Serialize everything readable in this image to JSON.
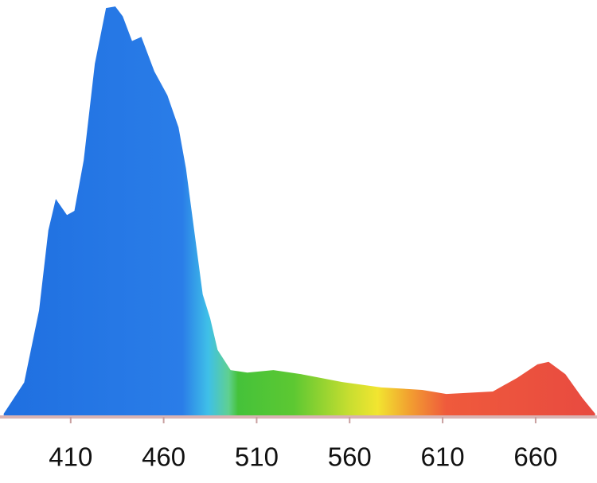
{
  "chart_data": {
    "type": "area",
    "x": [
      374,
      385,
      393,
      398,
      402,
      408,
      412,
      417,
      423,
      429,
      434,
      438,
      443,
      448,
      455,
      462,
      468,
      472,
      477,
      481,
      485,
      489,
      496,
      505,
      519,
      534,
      556,
      577,
      599,
      612,
      637,
      650,
      661,
      667,
      676,
      685,
      692
    ],
    "values": [
      0.4,
      8,
      25.5,
      45,
      52.6,
      48.7,
      49.7,
      62,
      85.5,
      99,
      99.4,
      97,
      91,
      92,
      83.6,
      77.8,
      70,
      60,
      43,
      29.4,
      23.6,
      15.9,
      11,
      10.4,
      11,
      10,
      8.1,
      6.8,
      6.2,
      5.2,
      5.8,
      9.1,
      12.4,
      13,
      10,
      4.3,
      0.4
    ],
    "xlim": [
      372,
      693
    ],
    "ylim": [
      0,
      100
    ],
    "xticks": [
      410,
      460,
      510,
      560,
      610,
      660
    ],
    "gradient": [
      {
        "x": 372,
        "color": "#1f6fe0"
      },
      {
        "x": 470,
        "color": "#2a7de8"
      },
      {
        "x": 484,
        "color": "#3fc0e8"
      },
      {
        "x": 495,
        "color": "#5fd090"
      },
      {
        "x": 500,
        "color": "#45c23a"
      },
      {
        "x": 530,
        "color": "#5dc832"
      },
      {
        "x": 560,
        "color": "#c8de30"
      },
      {
        "x": 575,
        "color": "#f2e530"
      },
      {
        "x": 592,
        "color": "#f2a030"
      },
      {
        "x": 612,
        "color": "#ef5a3c"
      },
      {
        "x": 693,
        "color": "#e84a40"
      }
    ]
  }
}
